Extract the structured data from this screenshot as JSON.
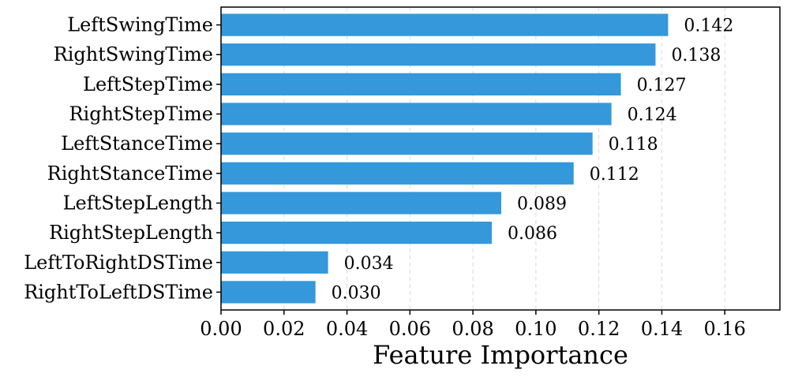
{
  "chart_data": {
    "type": "bar",
    "orientation": "horizontal",
    "categories": [
      "LeftSwingTime",
      "RightSwingTime",
      "LeftStepTime",
      "RightStepTime",
      "LeftStanceTime",
      "RightStanceTime",
      "LeftStepLength",
      "RightStepLength",
      "LeftToRightDSTime",
      "RightToLeftDSTime"
    ],
    "values": [
      0.142,
      0.138,
      0.127,
      0.124,
      0.118,
      0.112,
      0.089,
      0.086,
      0.034,
      0.03
    ],
    "value_labels": [
      "0.142",
      "0.138",
      "0.127",
      "0.124",
      "0.118",
      "0.112",
      "0.089",
      "0.086",
      "0.034",
      "0.030"
    ],
    "xlabel": "Feature Importance",
    "ylabel": "",
    "xlim": [
      0,
      0.1775
    ],
    "xticks": [
      0.0,
      0.02,
      0.04,
      0.06,
      0.08,
      0.1,
      0.12,
      0.14,
      0.16
    ],
    "xtick_labels": [
      "0.00",
      "0.02",
      "0.04",
      "0.06",
      "0.08",
      "0.10",
      "0.12",
      "0.14",
      "0.16"
    ],
    "grid": "vertical dashed",
    "bar_color": "#3498db"
  }
}
